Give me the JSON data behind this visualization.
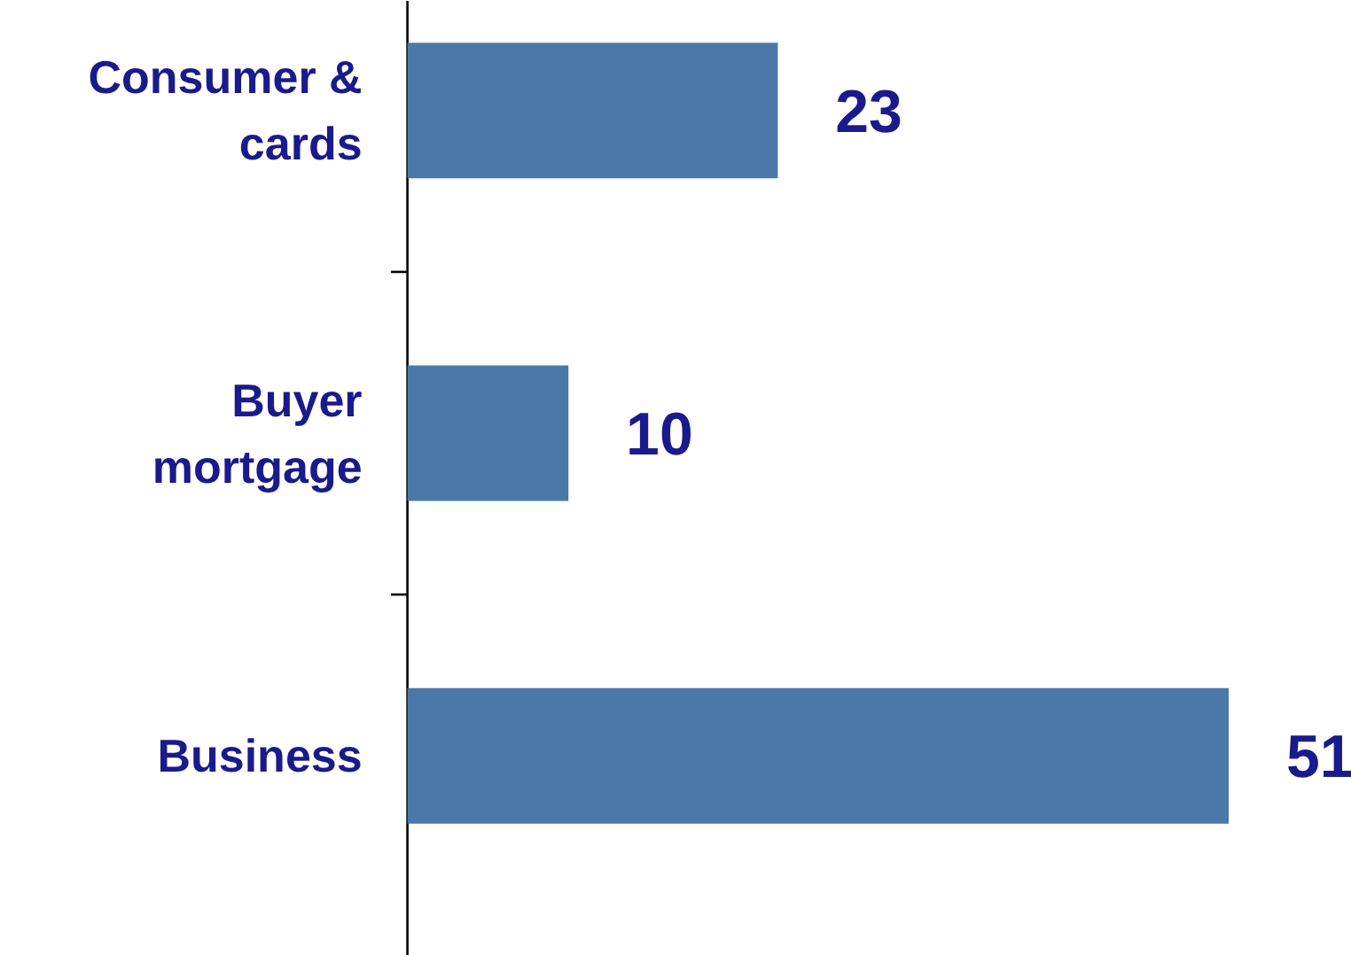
{
  "chart_data": {
    "type": "bar",
    "orientation": "horizontal",
    "categories": [
      "Consumer & cards",
      "Buyer mortgage",
      "Business"
    ],
    "values": [
      23,
      10,
      51
    ],
    "color": "#4a78a8",
    "data_labels": true
  }
}
